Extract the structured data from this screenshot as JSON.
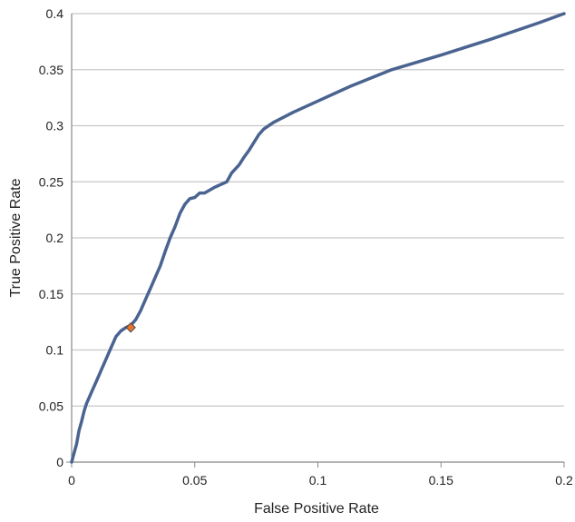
{
  "chart_data": {
    "type": "line",
    "title": "",
    "xlabel": "False Positive Rate",
    "ylabel": "True Positive Rate",
    "xlim": [
      0,
      0.2
    ],
    "ylim": [
      0,
      0.4
    ],
    "x_ticks": [
      "0",
      "0.05",
      "0.1",
      "0.15",
      "0.2"
    ],
    "y_ticks": [
      "0",
      "0.05",
      "0.1",
      "0.15",
      "0.2",
      "0.25",
      "0.3",
      "0.35",
      "0.4"
    ],
    "grid": "horizontal",
    "colors": {
      "line": "#4A6390",
      "marker_fill": "#E8732A",
      "marker_stroke": "#444444",
      "grid": "#C8C8C8",
      "axis": "#888888"
    },
    "series": [
      {
        "x": [
          0,
          0.001,
          0.002,
          0.003,
          0.004,
          0.005,
          0.006,
          0.008,
          0.01,
          0.012,
          0.014,
          0.016,
          0.018,
          0.02,
          0.022,
          0.024,
          0.026,
          0.028,
          0.03,
          0.032,
          0.034,
          0.036,
          0.038,
          0.04,
          0.042,
          0.044,
          0.046,
          0.048,
          0.05,
          0.052,
          0.054,
          0.058,
          0.063,
          0.065,
          0.068,
          0.07,
          0.072,
          0.074,
          0.076,
          0.078,
          0.08,
          0.082,
          0.09,
          0.1,
          0.11,
          0.113,
          0.13,
          0.15,
          0.17,
          0.19,
          0.2
        ],
        "y": [
          0,
          0.008,
          0.016,
          0.028,
          0.036,
          0.045,
          0.052,
          0.062,
          0.072,
          0.082,
          0.092,
          0.102,
          0.112,
          0.117,
          0.12,
          0.122,
          0.127,
          0.135,
          0.145,
          0.155,
          0.165,
          0.175,
          0.188,
          0.2,
          0.21,
          0.222,
          0.23,
          0.235,
          0.236,
          0.24,
          0.24,
          0.245,
          0.25,
          0.258,
          0.265,
          0.272,
          0.278,
          0.285,
          0.292,
          0.297,
          0.3,
          0.303,
          0.312,
          0.322,
          0.332,
          0.335,
          0.35,
          0.363,
          0.377,
          0.392,
          0.4
        ]
      }
    ],
    "markers": [
      {
        "x": 0.024,
        "y": 0.12
      }
    ]
  }
}
